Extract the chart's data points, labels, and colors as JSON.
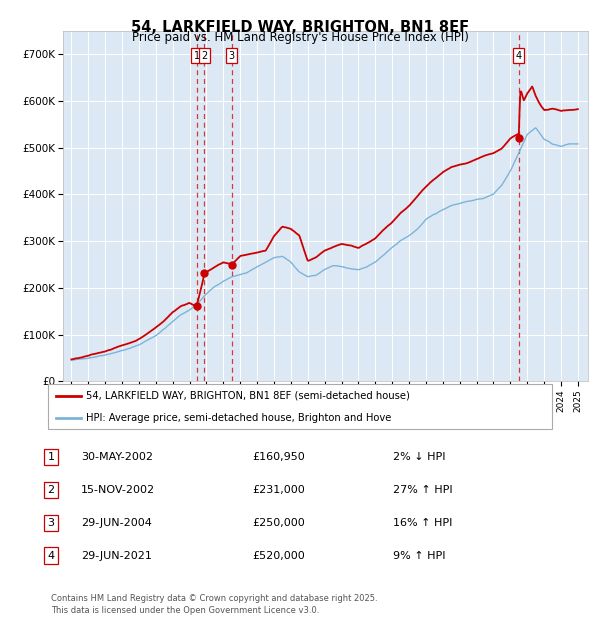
{
  "title": "54, LARKFIELD WAY, BRIGHTON, BN1 8EF",
  "subtitle": "Price paid vs. HM Land Registry's House Price Index (HPI)",
  "legend_line1": "54, LARKFIELD WAY, BRIGHTON, BN1 8EF (semi-detached house)",
  "legend_line2": "HPI: Average price, semi-detached house, Brighton and Hove",
  "footer": "Contains HM Land Registry data © Crown copyright and database right 2025.\nThis data is licensed under the Open Government Licence v3.0.",
  "hpi_color": "#7cb4d8",
  "price_color": "#cc0000",
  "bg_color": "#dce9f5",
  "transactions": [
    {
      "id": 1,
      "date": "30-MAY-2002",
      "price": 160950,
      "price_str": "£160,950",
      "pct": "2%",
      "dir": "↓",
      "x": 2002.41
    },
    {
      "id": 2,
      "date": "15-NOV-2002",
      "price": 231000,
      "price_str": "£231,000",
      "pct": "27%",
      "dir": "↑",
      "x": 2002.88
    },
    {
      "id": 3,
      "date": "29-JUN-2004",
      "price": 250000,
      "price_str": "£250,000",
      "pct": "16%",
      "dir": "↑",
      "x": 2004.49
    },
    {
      "id": 4,
      "date": "29-JUN-2021",
      "price": 520000,
      "price_str": "£520,000",
      "pct": "9%",
      "dir": "↑",
      "x": 2021.49
    }
  ],
  "ylim": [
    0,
    750000
  ],
  "yticks": [
    0,
    100000,
    200000,
    300000,
    400000,
    500000,
    600000,
    700000
  ],
  "ytick_labels": [
    "£0",
    "£100K",
    "£200K",
    "£300K",
    "£400K",
    "£500K",
    "£600K",
    "£700K"
  ],
  "xlim_start": 1994.5,
  "xlim_end": 2025.6,
  "hpi_key": [
    [
      1995.0,
      45000
    ],
    [
      1995.5,
      47000
    ],
    [
      1996.0,
      50000
    ],
    [
      1996.5,
      54000
    ],
    [
      1997.0,
      58000
    ],
    [
      1997.5,
      63000
    ],
    [
      1998.0,
      68000
    ],
    [
      1998.5,
      73000
    ],
    [
      1999.0,
      80000
    ],
    [
      1999.5,
      90000
    ],
    [
      2000.0,
      100000
    ],
    [
      2000.5,
      115000
    ],
    [
      2001.0,
      130000
    ],
    [
      2001.5,
      145000
    ],
    [
      2002.0,
      155000
    ],
    [
      2002.5,
      170000
    ],
    [
      2003.0,
      190000
    ],
    [
      2003.5,
      205000
    ],
    [
      2004.0,
      215000
    ],
    [
      2004.5,
      225000
    ],
    [
      2005.0,
      230000
    ],
    [
      2005.5,
      235000
    ],
    [
      2006.0,
      245000
    ],
    [
      2006.5,
      255000
    ],
    [
      2007.0,
      265000
    ],
    [
      2007.5,
      268000
    ],
    [
      2008.0,
      255000
    ],
    [
      2008.5,
      235000
    ],
    [
      2009.0,
      225000
    ],
    [
      2009.5,
      228000
    ],
    [
      2010.0,
      240000
    ],
    [
      2010.5,
      248000
    ],
    [
      2011.0,
      245000
    ],
    [
      2011.5,
      240000
    ],
    [
      2012.0,
      238000
    ],
    [
      2012.5,
      245000
    ],
    [
      2013.0,
      255000
    ],
    [
      2013.5,
      270000
    ],
    [
      2014.0,
      285000
    ],
    [
      2014.5,
      300000
    ],
    [
      2015.0,
      310000
    ],
    [
      2015.5,
      325000
    ],
    [
      2016.0,
      345000
    ],
    [
      2016.5,
      355000
    ],
    [
      2017.0,
      365000
    ],
    [
      2017.5,
      375000
    ],
    [
      2018.0,
      380000
    ],
    [
      2018.5,
      385000
    ],
    [
      2019.0,
      388000
    ],
    [
      2019.5,
      392000
    ],
    [
      2020.0,
      400000
    ],
    [
      2020.5,
      420000
    ],
    [
      2021.0,
      450000
    ],
    [
      2021.5,
      490000
    ],
    [
      2022.0,
      530000
    ],
    [
      2022.5,
      545000
    ],
    [
      2023.0,
      520000
    ],
    [
      2023.5,
      510000
    ],
    [
      2024.0,
      505000
    ],
    [
      2024.5,
      510000
    ],
    [
      2025.0,
      510000
    ]
  ],
  "price_key": [
    [
      1995.0,
      47000
    ],
    [
      1995.5,
      50000
    ],
    [
      1996.0,
      54000
    ],
    [
      1996.5,
      58000
    ],
    [
      1997.0,
      63000
    ],
    [
      1997.5,
      70000
    ],
    [
      1998.0,
      76000
    ],
    [
      1998.5,
      82000
    ],
    [
      1999.0,
      90000
    ],
    [
      1999.5,
      102000
    ],
    [
      2000.0,
      115000
    ],
    [
      2000.5,
      130000
    ],
    [
      2001.0,
      148000
    ],
    [
      2001.5,
      162000
    ],
    [
      2002.0,
      168000
    ],
    [
      2002.41,
      160950
    ],
    [
      2002.88,
      231000
    ],
    [
      2003.0,
      235000
    ],
    [
      2003.5,
      245000
    ],
    [
      2004.0,
      255000
    ],
    [
      2004.49,
      250000
    ],
    [
      2005.0,
      268000
    ],
    [
      2005.5,
      272000
    ],
    [
      2006.0,
      275000
    ],
    [
      2006.5,
      278000
    ],
    [
      2007.0,
      310000
    ],
    [
      2007.5,
      330000
    ],
    [
      2008.0,
      325000
    ],
    [
      2008.5,
      310000
    ],
    [
      2009.0,
      255000
    ],
    [
      2009.5,
      262000
    ],
    [
      2010.0,
      275000
    ],
    [
      2010.5,
      282000
    ],
    [
      2011.0,
      288000
    ],
    [
      2011.5,
      285000
    ],
    [
      2012.0,
      280000
    ],
    [
      2012.5,
      290000
    ],
    [
      2013.0,
      300000
    ],
    [
      2013.5,
      318000
    ],
    [
      2014.0,
      335000
    ],
    [
      2014.5,
      355000
    ],
    [
      2015.0,
      370000
    ],
    [
      2015.5,
      390000
    ],
    [
      2016.0,
      410000
    ],
    [
      2016.5,
      425000
    ],
    [
      2017.0,
      440000
    ],
    [
      2017.5,
      450000
    ],
    [
      2018.0,
      455000
    ],
    [
      2018.5,
      460000
    ],
    [
      2019.0,
      468000
    ],
    [
      2019.5,
      475000
    ],
    [
      2020.0,
      480000
    ],
    [
      2020.5,
      490000
    ],
    [
      2021.0,
      510000
    ],
    [
      2021.49,
      520000
    ],
    [
      2021.6,
      615000
    ],
    [
      2021.8,
      590000
    ],
    [
      2022.0,
      605000
    ],
    [
      2022.3,
      620000
    ],
    [
      2022.5,
      600000
    ],
    [
      2022.8,
      580000
    ],
    [
      2023.0,
      570000
    ],
    [
      2023.5,
      572000
    ],
    [
      2024.0,
      568000
    ],
    [
      2024.5,
      570000
    ],
    [
      2025.0,
      572000
    ]
  ]
}
